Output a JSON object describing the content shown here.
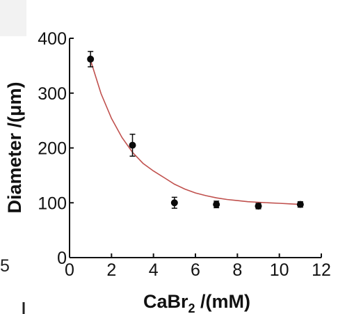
{
  "chart_data": {
    "type": "scatter",
    "xlabel_main": "CaBr",
    "xlabel_sub": "2",
    "xlabel_unit": " /(mM)",
    "ylabel": "Diameter /(μm)",
    "xlim": [
      0,
      12
    ],
    "ylim": [
      0,
      400
    ],
    "x_ticks": [
      "0",
      "2",
      "4",
      "6",
      "8",
      "10",
      "12"
    ],
    "y_ticks": [
      "0",
      "100",
      "200",
      "300",
      "400"
    ],
    "series": [
      {
        "x": [
          1,
          3,
          5,
          7,
          9,
          11
        ],
        "y": [
          362,
          205,
          100,
          97,
          94,
          97
        ],
        "error": [
          14,
          20,
          10,
          6,
          5,
          5
        ]
      }
    ],
    "fit": {
      "type": "exponential decay",
      "x": [
        1,
        1.5,
        2,
        2.5,
        3,
        3.5,
        4,
        4.5,
        5,
        5.5,
        6,
        6.5,
        7,
        7.5,
        8,
        8.5,
        9,
        9.5,
        10,
        10.5,
        11
      ],
      "y": [
        360,
        299,
        254,
        219,
        192,
        172,
        158,
        146,
        134,
        125,
        118,
        113,
        109,
        106,
        104,
        102,
        101,
        100,
        99,
        98,
        97
      ]
    },
    "grid": false,
    "colors": {
      "marker": "#0a0a0a",
      "fit_line": "#c0504d",
      "axis": "#111111"
    }
  },
  "fragments": {
    "left_edge_number": "5"
  }
}
